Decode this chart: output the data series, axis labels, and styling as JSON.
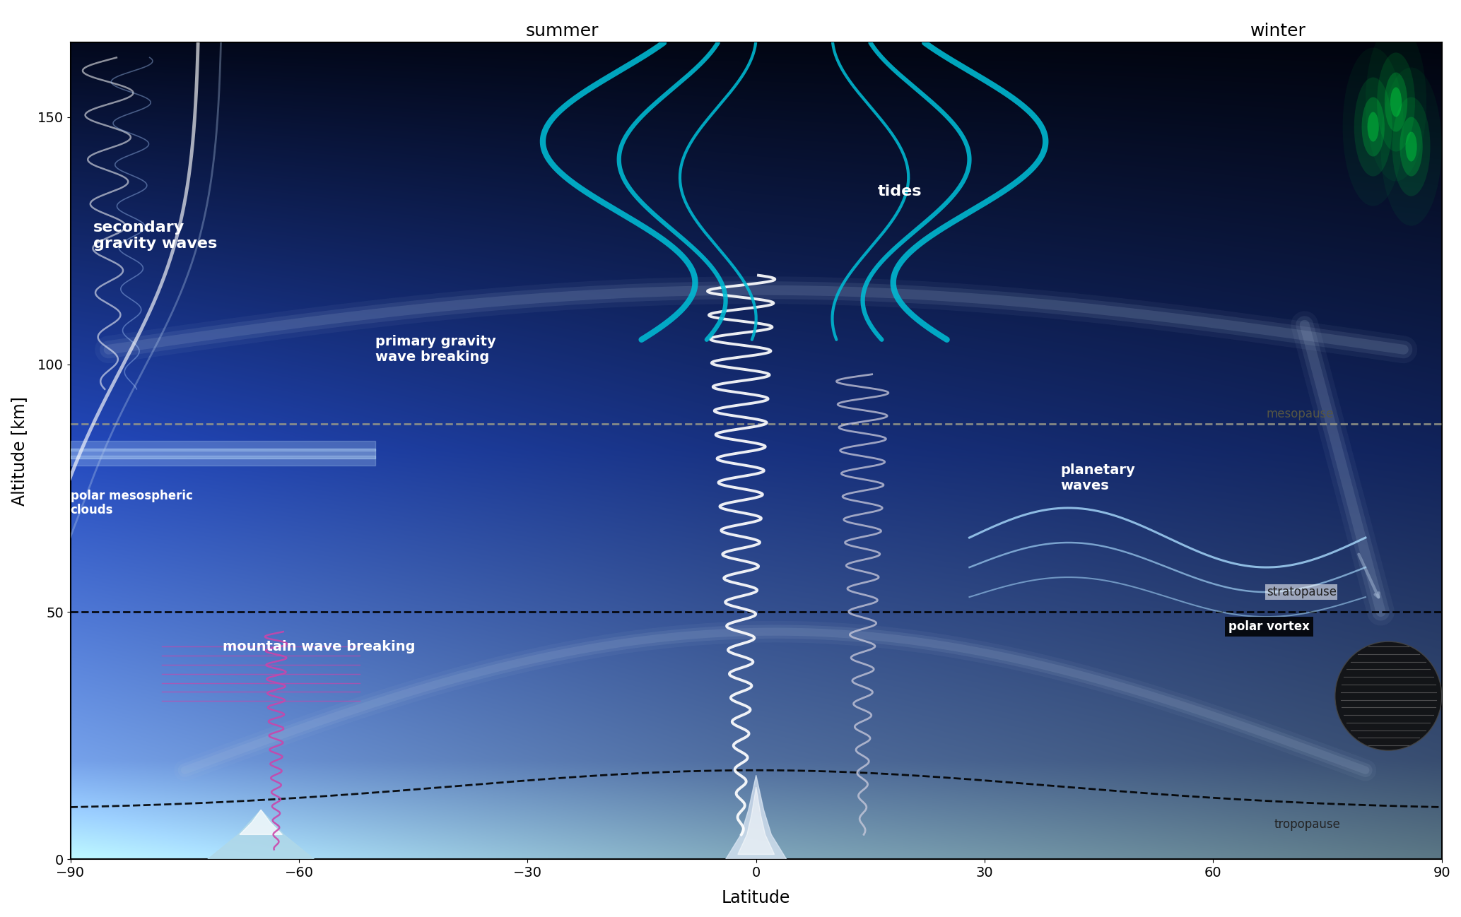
{
  "title_summer": "summer",
  "title_winter": "winter",
  "xlabel": "Latitude",
  "ylabel": "Altitude [km]",
  "xlim": [
    -90,
    90
  ],
  "ylim": [
    0,
    165
  ],
  "xticks": [
    -90,
    -60,
    -30,
    0,
    30,
    60,
    90
  ],
  "yticks": [
    0,
    50,
    100,
    150
  ],
  "labels": {
    "secondary_gravity_waves": "secondary\ngravity waves",
    "primary_gravity_wave_breaking": "primary gravity\nwave breaking",
    "tides": "tides",
    "planetary_waves": "planetary\nwaves",
    "mountain_wave_breaking": "mountain wave breaking",
    "polar_mesospheric_clouds": "polar mesospheric\nclouds",
    "polar_vortex": "polar vortex",
    "tropopause": "tropopause",
    "stratopause": "stratopause",
    "mesopause": "mesopause"
  },
  "teal_color": "#00bcd4",
  "white_wave_color": "white",
  "purple_wave_color": "#cc44aa",
  "lightblue_color": "#add8e6",
  "aurora_green": "#00ee44"
}
